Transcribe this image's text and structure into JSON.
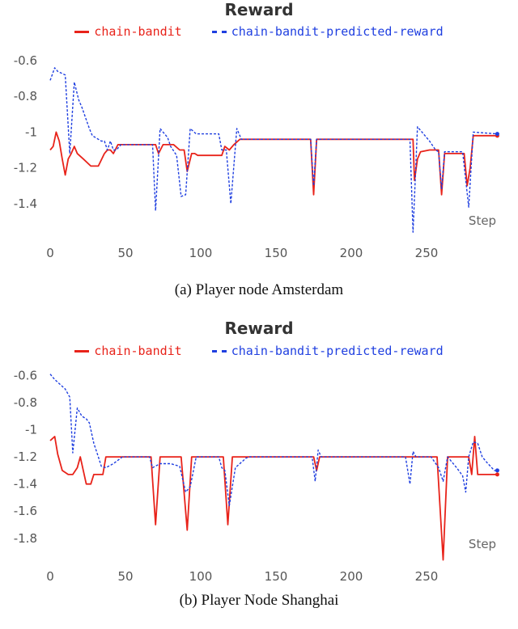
{
  "charts": [
    {
      "title": "Reward",
      "caption": "(a) Player node Amsterdam",
      "step_label": "Step",
      "chart_data": {
        "type": "line",
        "title": "Reward",
        "xlabel": "Step",
        "ylabel": "",
        "xlim": [
          0,
          300
        ],
        "ylim": [
          -1.6,
          -0.55
        ],
        "xticks": [
          0,
          50,
          100,
          150,
          200,
          250
        ],
        "yticks": [
          -0.6,
          -0.8,
          -1,
          -1.2,
          -1.4
        ],
        "grid": false,
        "legend": "top",
        "series": [
          {
            "name": "chain-bandit",
            "color": "#e8231a",
            "dash": "solid",
            "points": [
              [
                0,
                -1.1
              ],
              [
                2,
                -1.08
              ],
              [
                4,
                -1.0
              ],
              [
                6,
                -1.05
              ],
              [
                8,
                -1.15
              ],
              [
                10,
                -1.24
              ],
              [
                12,
                -1.15
              ],
              [
                14,
                -1.12
              ],
              [
                16,
                -1.08
              ],
              [
                18,
                -1.12
              ],
              [
                22,
                -1.15
              ],
              [
                27,
                -1.19
              ],
              [
                32,
                -1.19
              ],
              [
                36,
                -1.12
              ],
              [
                38,
                -1.1
              ],
              [
                40,
                -1.1
              ],
              [
                42,
                -1.12
              ],
              [
                45,
                -1.07
              ],
              [
                70,
                -1.07
              ],
              [
                72,
                -1.12
              ],
              [
                75,
                -1.07
              ],
              [
                82,
                -1.07
              ],
              [
                86,
                -1.1
              ],
              [
                89,
                -1.1
              ],
              [
                91,
                -1.22
              ],
              [
                94,
                -1.12
              ],
              [
                96,
                -1.12
              ],
              [
                98,
                -1.13
              ],
              [
                110,
                -1.13
              ],
              [
                114,
                -1.13
              ],
              [
                116,
                -1.08
              ],
              [
                119,
                -1.1
              ],
              [
                122,
                -1.07
              ],
              [
                126,
                -1.04
              ],
              [
                173,
                -1.04
              ],
              [
                175,
                -1.35
              ],
              [
                177,
                -1.04
              ],
              [
                241,
                -1.04
              ],
              [
                242,
                -1.27
              ],
              [
                244,
                -1.15
              ],
              [
                246,
                -1.11
              ],
              [
                252,
                -1.1
              ],
              [
                258,
                -1.1
              ],
              [
                260,
                -1.35
              ],
              [
                262,
                -1.12
              ],
              [
                275,
                -1.12
              ],
              [
                277,
                -1.3
              ],
              [
                279,
                -1.2
              ],
              [
                281,
                -1.02
              ],
              [
                297,
                -1.02
              ]
            ]
          },
          {
            "name": "chain-bandit-predicted-reward",
            "color": "#1f3fe0",
            "dash": "dashed",
            "points": [
              [
                0,
                -0.71
              ],
              [
                3,
                -0.64
              ],
              [
                5,
                -0.66
              ],
              [
                10,
                -0.68
              ],
              [
                13,
                -1.12
              ],
              [
                16,
                -0.72
              ],
              [
                19,
                -0.82
              ],
              [
                21,
                -0.86
              ],
              [
                26,
                -0.98
              ],
              [
                28,
                -1.02
              ],
              [
                34,
                -1.05
              ],
              [
                36,
                -1.05
              ],
              [
                38,
                -1.1
              ],
              [
                40,
                -1.05
              ],
              [
                42,
                -1.1
              ],
              [
                44,
                -1.1
              ],
              [
                47,
                -1.07
              ],
              [
                68,
                -1.07
              ],
              [
                70,
                -1.44
              ],
              [
                73,
                -0.98
              ],
              [
                78,
                -1.03
              ],
              [
                80,
                -1.08
              ],
              [
                84,
                -1.13
              ],
              [
                87,
                -1.36
              ],
              [
                90,
                -1.35
              ],
              [
                93,
                -0.98
              ],
              [
                97,
                -1.01
              ],
              [
                112,
                -1.01
              ],
              [
                114,
                -1.1
              ],
              [
                117,
                -1.1
              ],
              [
                120,
                -1.4
              ],
              [
                124,
                -0.98
              ],
              [
                127,
                -1.04
              ],
              [
                173,
                -1.04
              ],
              [
                175,
                -1.3
              ],
              [
                177,
                -1.04
              ],
              [
                239,
                -1.04
              ],
              [
                241,
                -1.56
              ],
              [
                244,
                -0.97
              ],
              [
                247,
                -1.0
              ],
              [
                252,
                -1.05
              ],
              [
                256,
                -1.1
              ],
              [
                258,
                -1.11
              ],
              [
                260,
                -1.32
              ],
              [
                262,
                -1.11
              ],
              [
                274,
                -1.11
              ],
              [
                278,
                -1.42
              ],
              [
                281,
                -1.0
              ],
              [
                297,
                -1.01
              ]
            ]
          }
        ]
      }
    },
    {
      "title": "Reward",
      "caption": "(b) Player Node Shanghai",
      "step_label": "Step",
      "chart_data": {
        "type": "line",
        "title": "Reward",
        "xlabel": "Step",
        "ylabel": "",
        "xlim": [
          0,
          300
        ],
        "ylim": [
          -1.98,
          -0.55
        ],
        "xticks": [
          0,
          50,
          100,
          150,
          200,
          250
        ],
        "yticks": [
          -0.6,
          -0.8,
          -1,
          -1.2,
          -1.4,
          -1.6,
          -1.8
        ],
        "grid": false,
        "legend": "top",
        "series": [
          {
            "name": "chain-bandit",
            "color": "#e8231a",
            "dash": "solid",
            "points": [
              [
                0,
                -1.08
              ],
              [
                3,
                -1.05
              ],
              [
                5,
                -1.18
              ],
              [
                8,
                -1.3
              ],
              [
                12,
                -1.33
              ],
              [
                15,
                -1.33
              ],
              [
                18,
                -1.28
              ],
              [
                20,
                -1.2
              ],
              [
                22,
                -1.3
              ],
              [
                24,
                -1.4
              ],
              [
                27,
                -1.4
              ],
              [
                29,
                -1.33
              ],
              [
                35,
                -1.33
              ],
              [
                37,
                -1.2
              ],
              [
                67,
                -1.2
              ],
              [
                70,
                -1.7
              ],
              [
                73,
                -1.2
              ],
              [
                87,
                -1.2
              ],
              [
                91,
                -1.74
              ],
              [
                94,
                -1.2
              ],
              [
                115,
                -1.2
              ],
              [
                118,
                -1.7
              ],
              [
                121,
                -1.2
              ],
              [
                175,
                -1.2
              ],
              [
                177,
                -1.3
              ],
              [
                179,
                -1.2
              ],
              [
                257,
                -1.2
              ],
              [
                261,
                -1.96
              ],
              [
                264,
                -1.2
              ],
              [
                278,
                -1.2
              ],
              [
                280,
                -1.33
              ],
              [
                282,
                -1.05
              ],
              [
                284,
                -1.33
              ],
              [
                297,
                -1.33
              ]
            ]
          },
          {
            "name": "chain-bandit-predicted-reward",
            "color": "#1f3fe0",
            "dash": "dashed",
            "points": [
              [
                0,
                -0.59
              ],
              [
                3,
                -0.63
              ],
              [
                6,
                -0.66
              ],
              [
                10,
                -0.7
              ],
              [
                13,
                -0.76
              ],
              [
                15,
                -1.17
              ],
              [
                18,
                -0.84
              ],
              [
                21,
                -0.9
              ],
              [
                24,
                -0.92
              ],
              [
                26,
                -0.95
              ],
              [
                29,
                -1.1
              ],
              [
                32,
                -1.2
              ],
              [
                34,
                -1.27
              ],
              [
                37,
                -1.28
              ],
              [
                42,
                -1.25
              ],
              [
                48,
                -1.2
              ],
              [
                66,
                -1.2
              ],
              [
                68,
                -1.28
              ],
              [
                73,
                -1.25
              ],
              [
                80,
                -1.25
              ],
              [
                86,
                -1.27
              ],
              [
                90,
                -1.46
              ],
              [
                93,
                -1.42
              ],
              [
                97,
                -1.2
              ],
              [
                112,
                -1.2
              ],
              [
                114,
                -1.28
              ],
              [
                116,
                -1.3
              ],
              [
                119,
                -1.56
              ],
              [
                123,
                -1.28
              ],
              [
                127,
                -1.24
              ],
              [
                130,
                -1.21
              ],
              [
                132,
                -1.2
              ],
              [
                174,
                -1.2
              ],
              [
                176,
                -1.38
              ],
              [
                178,
                -1.15
              ],
              [
                180,
                -1.2
              ],
              [
                236,
                -1.2
              ],
              [
                239,
                -1.4
              ],
              [
                241,
                -1.16
              ],
              [
                243,
                -1.2
              ],
              [
                253,
                -1.2
              ],
              [
                258,
                -1.28
              ],
              [
                261,
                -1.38
              ],
              [
                264,
                -1.2
              ],
              [
                270,
                -1.28
              ],
              [
                274,
                -1.34
              ],
              [
                276,
                -1.46
              ],
              [
                278,
                -1.2
              ],
              [
                281,
                -1.09
              ],
              [
                284,
                -1.1
              ],
              [
                287,
                -1.2
              ],
              [
                290,
                -1.24
              ],
              [
                295,
                -1.3
              ],
              [
                297,
                -1.3
              ]
            ]
          }
        ]
      }
    }
  ]
}
